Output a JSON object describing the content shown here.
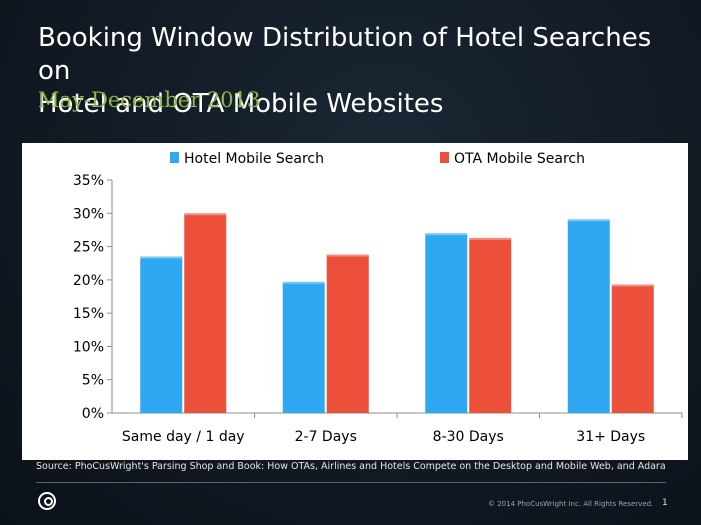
{
  "slide": {
    "title": "Booking Window Distribution of Hotel Searches  on\nHotel and OTA Mobile Websites",
    "subtitle": "May-December 2013",
    "source": "Source: PhoCusWright's Parsing Shop and Book: How OTAs, Airlines and Hotels Compete on the Desktop and Mobile Web, and Adara",
    "copyright": "© 2014 PhoCusWright Inc. All Rights Reserved.",
    "page_number": "1",
    "logo_icon": "phocuswright-logo-icon"
  },
  "chart_data": {
    "type": "bar",
    "categories": [
      "Same day / 1 day",
      "2-7 Days",
      "8-30 Days",
      "31+ Days"
    ],
    "series": [
      {
        "name": "Hotel Mobile Search",
        "color": "#2ea8f0",
        "values": [
          23.5,
          19.7,
          27.0,
          29.1
        ]
      },
      {
        "name": "OTA Mobile Search",
        "color": "#ec4f3a",
        "values": [
          30.0,
          23.8,
          26.3,
          19.3
        ]
      }
    ],
    "ylim": [
      0,
      35
    ],
    "yticks": [
      "0%",
      "5%",
      "10%",
      "15%",
      "20%",
      "25%",
      "30%",
      "35%"
    ],
    "ytick_values": [
      0,
      5,
      10,
      15,
      20,
      25,
      30,
      35
    ],
    "grid": false,
    "legend": "top-center"
  }
}
